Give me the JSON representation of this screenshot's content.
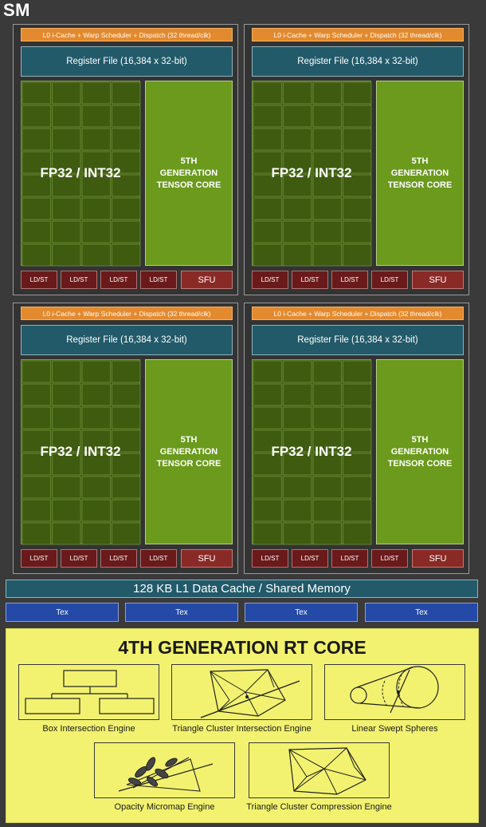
{
  "sm_title": "SM",
  "quadrant": {
    "l0_label": "L0 i-Cache + Warp Scheduler + Dispatch (32 thread/clk)",
    "register_file": "Register File (16,384 x 32-bit)",
    "fp_label": "FP32 / INT32",
    "tensor_lines": [
      "5TH",
      "GENERATION",
      "TENSOR CORE"
    ],
    "ldst_label": "LD/ST",
    "sfu_label": "SFU"
  },
  "l1_cache": "128 KB L1 Data Cache / Shared Memory",
  "tex_label": "Tex",
  "rt_core": {
    "title": "4TH GENERATION RT CORE",
    "engines": [
      "Box Intersection Engine",
      "Triangle Cluster Intersection Engine",
      "Linear Swept Spheres",
      "Opacity Micromap Engine",
      "Triangle Cluster Compression Engine"
    ]
  },
  "colors": {
    "l0": "#e38a2e",
    "register_file": "#225a6a",
    "fp32": "#3e5b10",
    "tensor": "#6b9a1c",
    "ldst": "#6a1a1a",
    "sfu": "#8a2a26",
    "tex": "#2449a6",
    "rt_core": "#f2f270"
  }
}
